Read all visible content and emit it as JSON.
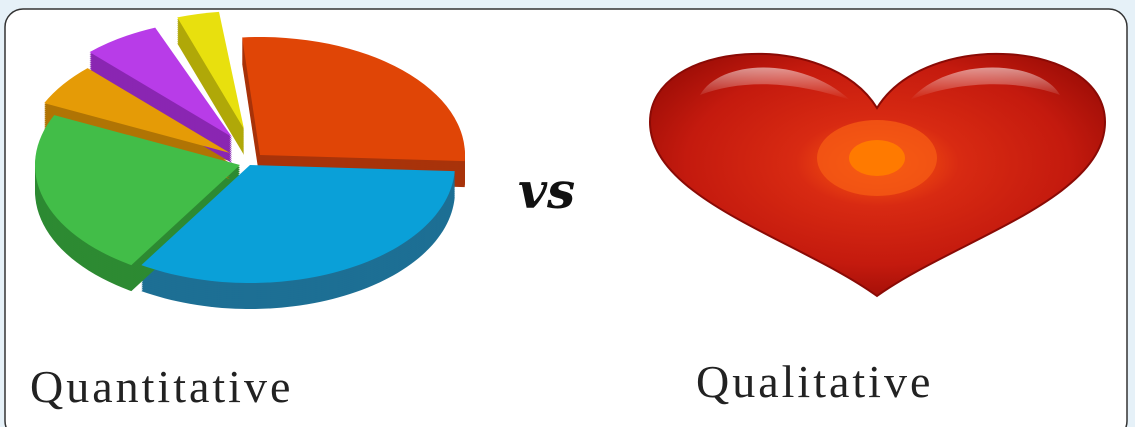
{
  "left_label": "Quantitative",
  "separator": "vs",
  "right_label": "Qualitative"
}
